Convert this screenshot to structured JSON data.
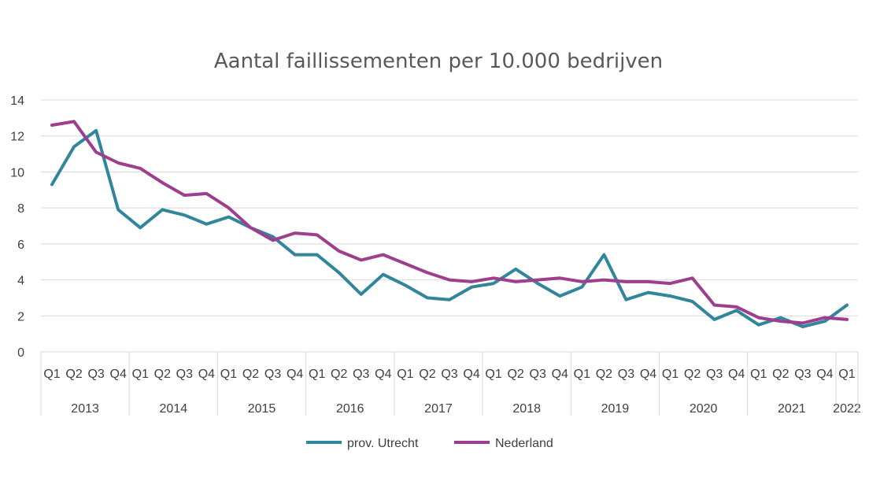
{
  "chart_data": {
    "type": "line",
    "title": "Aantal faillissementen per 10.000 bedrijven",
    "xlabel": "",
    "ylabel": "",
    "ylim": [
      0,
      14
    ],
    "yticks": [
      0,
      2,
      4,
      6,
      8,
      10,
      12,
      14
    ],
    "grid": true,
    "legend": "bottom",
    "categories": [
      "Q1",
      "Q2",
      "Q3",
      "Q4",
      "Q1",
      "Q2",
      "Q3",
      "Q4",
      "Q1",
      "Q2",
      "Q3",
      "Q4",
      "Q1",
      "Q2",
      "Q3",
      "Q4",
      "Q1",
      "Q2",
      "Q3",
      "Q4",
      "Q1",
      "Q2",
      "Q3",
      "Q4",
      "Q1",
      "Q2",
      "Q3",
      "Q4",
      "Q1",
      "Q2",
      "Q3",
      "Q4",
      "Q1",
      "Q2",
      "Q3",
      "Q4",
      "Q1"
    ],
    "years": [
      {
        "label": "2013",
        "count": 4
      },
      {
        "label": "2014",
        "count": 4
      },
      {
        "label": "2015",
        "count": 4
      },
      {
        "label": "2016",
        "count": 4
      },
      {
        "label": "2017",
        "count": 4
      },
      {
        "label": "2018",
        "count": 4
      },
      {
        "label": "2019",
        "count": 4
      },
      {
        "label": "2020",
        "count": 4
      },
      {
        "label": "2021",
        "count": 4
      },
      {
        "label": "2022",
        "count": 1
      }
    ],
    "series": [
      {
        "name": "prov. Utrecht",
        "color": "#31859c",
        "values": [
          9.3,
          11.4,
          12.3,
          7.9,
          6.9,
          7.9,
          7.6,
          7.1,
          7.5,
          6.9,
          6.4,
          5.4,
          5.4,
          4.4,
          3.2,
          4.3,
          3.7,
          3.0,
          2.9,
          3.6,
          3.8,
          4.6,
          3.8,
          3.1,
          3.6,
          5.4,
          2.9,
          3.3,
          3.1,
          2.8,
          1.8,
          2.3,
          1.5,
          1.9,
          1.4,
          1.7,
          2.6
        ]
      },
      {
        "name": "Nederland",
        "color": "#9e3e8f",
        "values": [
          12.6,
          12.8,
          11.1,
          10.5,
          10.2,
          9.4,
          8.7,
          8.8,
          8.0,
          6.9,
          6.2,
          6.6,
          6.5,
          5.6,
          5.1,
          5.4,
          4.9,
          4.4,
          4.0,
          3.9,
          4.1,
          3.9,
          4.0,
          4.1,
          3.9,
          4.0,
          3.9,
          3.9,
          3.8,
          4.1,
          2.6,
          2.5,
          1.9,
          1.7,
          1.6,
          1.9,
          1.8
        ]
      }
    ]
  }
}
